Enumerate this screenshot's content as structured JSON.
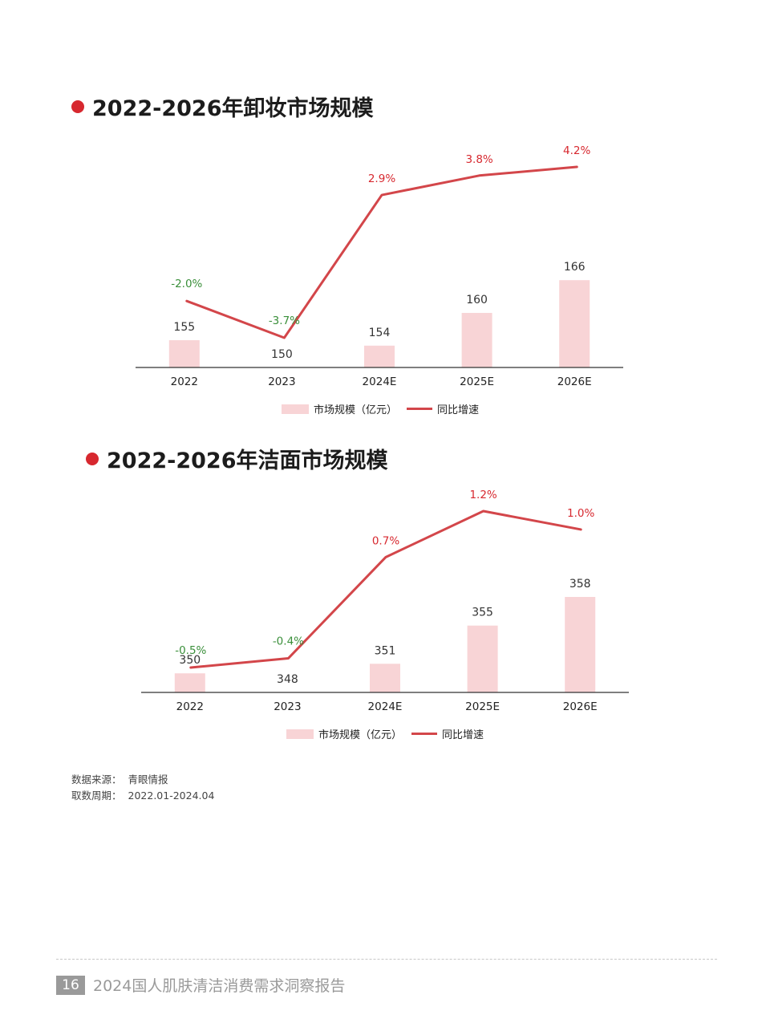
{
  "chart_data": [
    {
      "type": "bar",
      "title": "2022-2026年卸妆市场规模",
      "categories": [
        "2022",
        "2023",
        "2024E",
        "2025E",
        "2026E"
      ],
      "series": [
        {
          "name": "市场规模（亿元）",
          "type": "bar",
          "values": [
            155,
            150,
            154,
            160,
            166
          ],
          "labels": [
            "155",
            "150",
            "154",
            "160",
            "166"
          ]
        },
        {
          "name": "同比增速",
          "type": "line",
          "values": [
            -2.0,
            -3.7,
            2.9,
            3.8,
            4.2
          ],
          "labels": [
            "-2.0%",
            "-3.7%",
            "2.9%",
            "3.8%",
            "4.2%"
          ]
        }
      ],
      "legend_position": "bottom",
      "grid": false,
      "colors": {
        "bar": "#f8d4d6",
        "line": "#d3464a",
        "positive_label": "#d7282f",
        "negative_label": "#3a8f3a",
        "axis": "#333333"
      }
    },
    {
      "type": "bar",
      "title": "2022-2026年洁面市场规模",
      "categories": [
        "2022",
        "2023",
        "2024E",
        "2025E",
        "2026E"
      ],
      "series": [
        {
          "name": "市场规模（亿元）",
          "type": "bar",
          "values": [
            350,
            348,
            351,
            355,
            358
          ],
          "labels": [
            "350",
            "348",
            "351",
            "355",
            "358"
          ]
        },
        {
          "name": "同比增速",
          "type": "line",
          "values": [
            -0.5,
            -0.4,
            0.7,
            1.2,
            1.0
          ],
          "labels": [
            "-0.5%",
            "-0.4%",
            "0.7%",
            "1.2%",
            "1.0%"
          ]
        }
      ],
      "legend_position": "bottom",
      "grid": false,
      "colors": {
        "bar": "#f8d4d6",
        "line": "#d3464a",
        "positive_label": "#d7282f",
        "negative_label": "#3a8f3a",
        "axis": "#333333"
      }
    }
  ],
  "source": {
    "data_source_label": "数据来源：",
    "data_source_value": "青眼情报",
    "period_label": "取数周期：",
    "period_value": "2022.01-2024.04"
  },
  "footer": {
    "page_number": "16",
    "report_title": "2024国人肌肤清洁消费需求洞察报告"
  }
}
